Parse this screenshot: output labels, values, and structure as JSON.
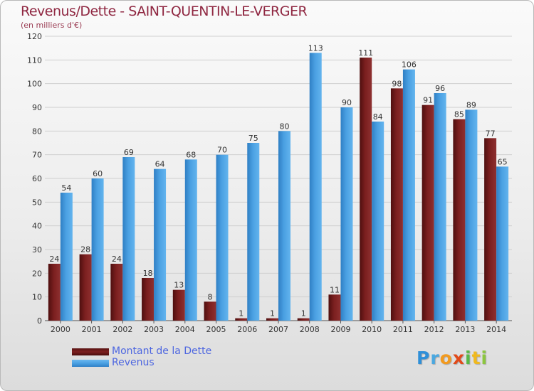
{
  "title": "Revenus/Dette - SAINT-QUENTIN-LE-VERGER",
  "subtitle": "(en milliers d'€)",
  "brand": {
    "letters": [
      "P",
      "r",
      "o",
      "x",
      "i",
      "t",
      "i"
    ],
    "colors": [
      "#2f8fd8",
      "#4aa8e0",
      "#f29a1f",
      "#e14a1a",
      "#57b947",
      "#f0b91e",
      "#8cc63f"
    ]
  },
  "colors": {
    "debt": "#7b1f1f",
    "revenue": "#4aa0e2",
    "grid": "#cfcfcf"
  },
  "chart_data": {
    "type": "bar",
    "categories": [
      "2000",
      "2001",
      "2002",
      "2003",
      "2004",
      "2005",
      "2006",
      "2007",
      "2008",
      "2009",
      "2010",
      "2011",
      "2012",
      "2013",
      "2014"
    ],
    "series": [
      {
        "name": "Montant de la Dette",
        "values": [
          24,
          28,
          24,
          18,
          13,
          8,
          1,
          1,
          1,
          11,
          111,
          98,
          91,
          85,
          77
        ]
      },
      {
        "name": "Revenus",
        "values": [
          54,
          60,
          69,
          64,
          68,
          70,
          75,
          80,
          113,
          90,
          84,
          106,
          96,
          89,
          65
        ]
      }
    ],
    "yticks": [
      0,
      10,
      20,
      30,
      40,
      50,
      60,
      70,
      80,
      90,
      100,
      110,
      120
    ],
    "ylim": [
      0,
      120
    ],
    "grid": true,
    "legend": "bottom-left"
  }
}
